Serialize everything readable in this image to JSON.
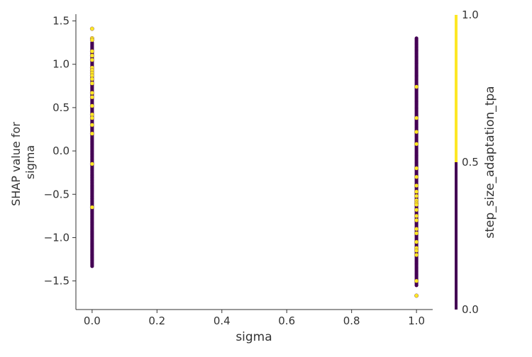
{
  "chart_data": {
    "type": "scatter",
    "title": "",
    "xlabel": "sigma",
    "ylabel_lines": [
      "SHAP value for",
      "sigma"
    ],
    "xlim": [
      -0.05,
      1.05
    ],
    "ylim": [
      -1.83,
      1.57
    ],
    "x_ticks": [
      0.0,
      0.2,
      0.4,
      0.6,
      0.8,
      1.0
    ],
    "x_tick_labels": [
      "0.0",
      "0.2",
      "0.4",
      "0.6",
      "0.8",
      "1.0"
    ],
    "y_ticks": [
      1.5,
      1.0,
      0.5,
      0.0,
      -0.5,
      -1.0,
      -1.5
    ],
    "y_tick_labels": [
      "1.5",
      "1.0",
      "0.5",
      "0.0",
      "−0.5",
      "−1.0",
      "−1.5"
    ],
    "grid": false,
    "colorbar": {
      "label": "step_size_adaptation_tpa",
      "ticks": [
        1.0,
        0.5,
        0.0
      ],
      "tick_labels": [
        "1.0",
        "0.5",
        "0.0"
      ],
      "colors": {
        "low": "#440154",
        "high": "#fde725"
      }
    },
    "series": [
      {
        "x": 0.0,
        "dense_low_range": [
          -1.33,
          1.25
        ],
        "high_points": [
          1.41,
          1.3,
          1.28,
          1.15,
          1.1,
          1.05,
          0.96,
          0.93,
          0.9,
          0.87,
          0.83,
          0.78,
          0.67,
          0.62,
          0.52,
          0.42,
          0.38,
          0.3,
          0.2,
          -0.15,
          -0.65
        ]
      },
      {
        "x": 1.0,
        "dense_low_range": [
          -1.55,
          1.3
        ],
        "high_points": [
          0.74,
          0.38,
          0.22,
          0.08,
          -0.2,
          -0.3,
          -0.4,
          -0.47,
          -0.52,
          -0.57,
          -0.6,
          -0.62,
          -0.68,
          -0.75,
          -0.8,
          -0.9,
          -0.95,
          -1.05,
          -1.12,
          -1.15,
          -1.2,
          -1.5,
          -1.67
        ]
      }
    ]
  }
}
